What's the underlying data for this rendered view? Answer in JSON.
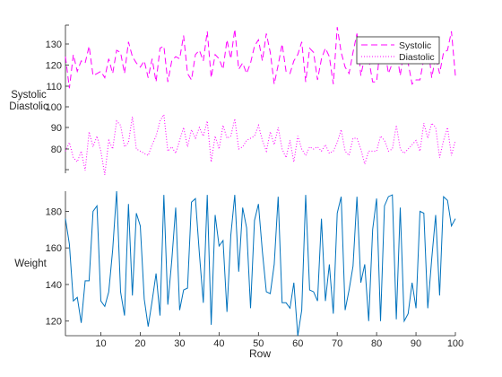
{
  "chart_data": {
    "type": "line",
    "layout": "stacked",
    "x_label": "Row",
    "x_range": [
      1,
      100
    ],
    "x_ticks": [
      10,
      20,
      30,
      40,
      50,
      60,
      70,
      80,
      90,
      100
    ],
    "x": [
      1,
      2,
      3,
      4,
      5,
      6,
      7,
      8,
      9,
      10,
      11,
      12,
      13,
      14,
      15,
      16,
      17,
      18,
      19,
      20,
      21,
      22,
      23,
      24,
      25,
      26,
      27,
      28,
      29,
      30,
      31,
      32,
      33,
      34,
      35,
      36,
      37,
      38,
      39,
      40,
      41,
      42,
      43,
      44,
      45,
      46,
      47,
      48,
      49,
      50,
      51,
      52,
      53,
      54,
      55,
      56,
      57,
      58,
      59,
      60,
      61,
      62,
      63,
      64,
      65,
      66,
      67,
      68,
      69,
      70,
      71,
      72,
      73,
      74,
      75,
      76,
      77,
      78,
      79,
      80,
      81,
      82,
      83,
      84,
      85,
      86,
      87,
      88,
      89,
      90,
      91,
      92,
      93,
      94,
      95,
      96,
      97,
      98,
      99,
      100
    ],
    "panels": [
      {
        "y_labels": [
          "Systolic",
          "Diastolic"
        ],
        "top_ticks": [
          110,
          120,
          130
        ],
        "mid_ticks": [
          100
        ],
        "bottom_ticks": [
          80,
          90
        ],
        "legend": {
          "position": "top-right",
          "entries": [
            "Systolic",
            "Diastolic"
          ]
        },
        "series": [
          {
            "name": "Systolic",
            "line_style": "dashed",
            "color": "#ff00ff",
            "values": [
              124,
              109,
              125,
              117,
              122,
              121,
              129,
              115,
              116,
              117,
              114,
              123,
              116,
              127,
              126,
              116,
              131,
              124,
              121,
              119,
              122,
              114,
              123,
              112,
              128,
              129,
              112,
              122,
              124,
              123,
              134,
              116,
              113,
              125,
              127,
              122,
              136,
              114,
              125,
              123,
              118,
              132,
              123,
              137,
              118,
              121,
              116,
              121,
              129,
              132,
              122,
              135,
              126,
              111,
              120,
              130,
              117,
              116,
              122,
              125,
              131,
              112,
              128,
              126,
              113,
              123,
              128,
              124,
              111,
              138,
              126,
              119,
              116,
              126,
              135,
              115,
              124,
              123,
              112,
              112,
              130,
              128,
              116,
              121,
              127,
              115,
              128,
              121,
              111,
              113,
              113,
              123,
              130,
              114,
              124,
              116,
              126,
              127,
              136,
              115
            ]
          },
          {
            "name": "Diastolic",
            "line_style": "dotted",
            "color": "#ff00ff",
            "values": [
              79,
              83,
              76,
              74,
              79,
              70,
              88,
              81,
              86,
              79,
              68,
              84,
              80,
              93,
              91,
              81,
              83,
              95,
              80,
              79,
              78,
              77,
              82,
              86,
              93,
              96,
              79,
              81,
              78,
              84,
              90,
              81,
              89,
              85,
              90,
              86,
              93,
              74,
              86,
              80,
              91,
              85,
              86,
              94,
              80,
              81,
              84,
              85,
              86,
              91,
              84,
              79,
              88,
              82,
              90,
              80,
              76,
              84,
              74,
              86,
              80,
              77,
              81,
              80,
              81,
              79,
              82,
              78,
              79,
              83,
              89,
              79,
              77,
              85,
              85,
              80,
              73,
              79,
              79,
              79,
              86,
              84,
              79,
              80,
              91,
              80,
              78,
              80,
              82,
              84,
              79,
              92,
              85,
              92,
              90,
              76,
              84,
              90,
              77,
              84
            ]
          }
        ]
      },
      {
        "y_labels": [
          "Weight"
        ],
        "y_range": [
          112,
          191
        ],
        "y_ticks": [
          120,
          140,
          160,
          180
        ],
        "series": [
          {
            "name": "Weight",
            "line_style": "solid",
            "color": "#0072bd",
            "values": [
              176,
              162,
              131,
              133,
              119,
              142,
              142,
              180,
              183,
              131,
              128,
              136,
              159,
              191,
              136,
              123,
              184,
              134,
              179,
              172,
              132,
              117,
              131,
              146,
              123,
              189,
              129,
              153,
              182,
              126,
              137,
              138,
              185,
              187,
              157,
              130,
              189,
              118,
              178,
              161,
              164,
              125,
              167,
              189,
              147,
              182,
              171,
              127,
              175,
              184,
              158,
              136,
              135,
              151,
              188,
              130,
              130,
              127,
              141,
              112,
              126,
              189,
              137,
              136,
              131,
              176,
              131,
              151,
              124,
              179,
              188,
              126,
              137,
              150,
              188,
              141,
              151,
              120,
              170,
              187,
              120,
              183,
              188,
              189,
              121,
              182,
              120,
              124,
              141,
              127,
              180,
              179,
              127,
              154,
              178,
              134,
              188,
              186,
              172,
              176
            ]
          }
        ]
      }
    ]
  }
}
